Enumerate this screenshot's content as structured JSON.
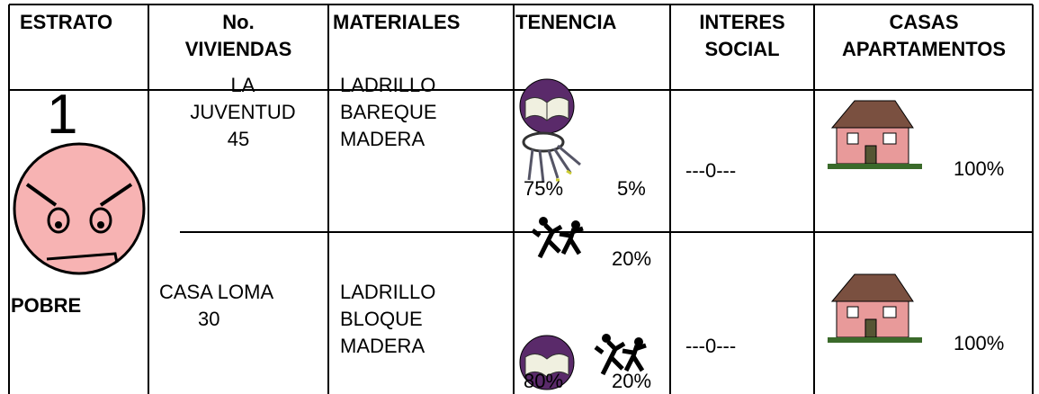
{
  "header": {
    "columns": [
      [
        "ESTRATO"
      ],
      [
        "No.",
        "VIVIENDAS"
      ],
      [
        "MATERIALES"
      ],
      [
        "TENENCIA"
      ],
      [
        "INTERES",
        "SOCIAL"
      ],
      [
        "CASAS",
        "APARTAMENTOS"
      ]
    ]
  },
  "estrato": {
    "number": "1",
    "label": "POBRE"
  },
  "rows": [
    {
      "viviendas": [
        "LA",
        "JUVENTUD",
        "45"
      ],
      "materiales": [
        "LADRILLO",
        "BAREQUE",
        "MADERA"
      ],
      "tenencia": [
        "75%",
        "5%",
        "20%"
      ],
      "interes_social": "---0---",
      "casas": "100%"
    },
    {
      "viviendas": [
        "CASA LOMA",
        "30"
      ],
      "materiales": [
        "LADRILLO",
        "BLOQUE",
        "MADERA"
      ],
      "tenencia": [
        "80%",
        "20%"
      ],
      "interes_social": "---0---",
      "casas": "100%"
    }
  ]
}
